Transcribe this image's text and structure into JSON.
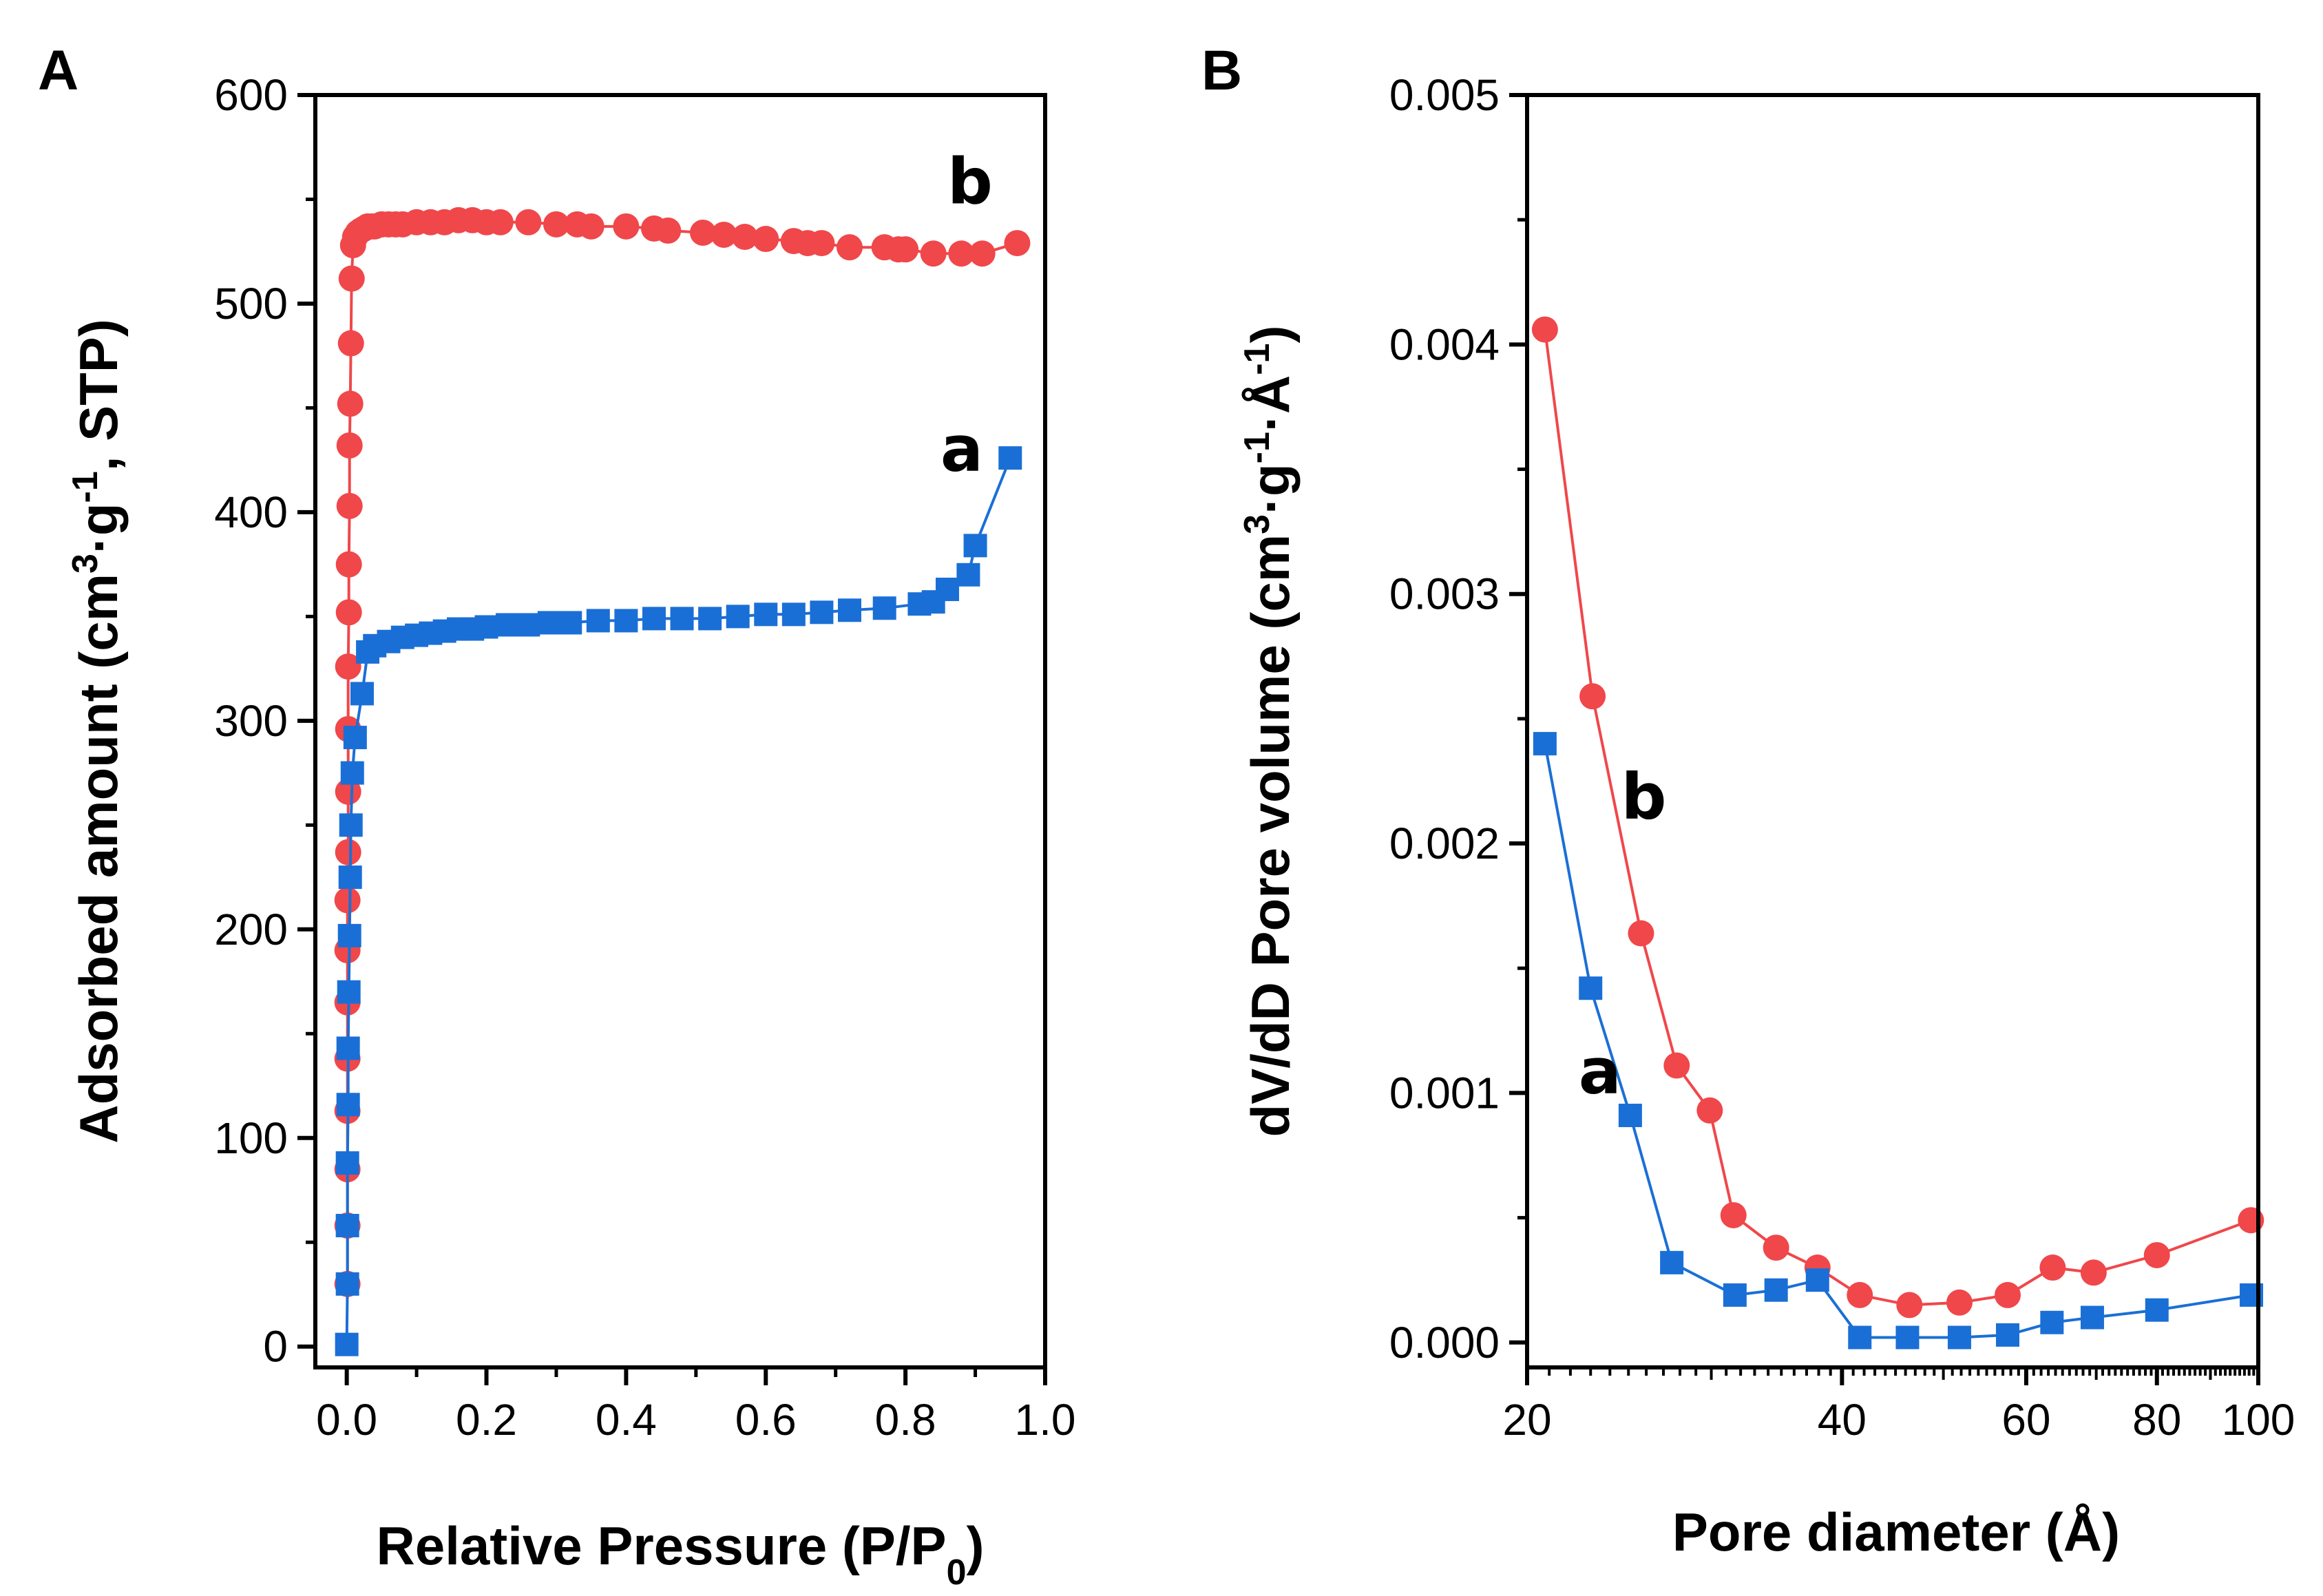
{
  "chart_data": [
    {
      "panel": "A",
      "type": "scatter",
      "xlabel": "Relative Pressure (P/P0)",
      "xlabel_parts": {
        "main": "Relative Pressure (P/P",
        "sub": "0",
        "end": ")"
      },
      "ylabel": "Adsorbed amount (cm3·g-1, STP)",
      "ylabel_parts": {
        "a": "Adsorbed amount (cm",
        "sup1": "3",
        "b": "·g",
        "sup2": "-1",
        "c": ", STP)"
      },
      "xlim": [
        -0.045,
        1.0
      ],
      "ylim": [
        -10,
        600
      ],
      "x_ticks": [
        0.0,
        0.2,
        0.4,
        0.6,
        0.8,
        1.0
      ],
      "x_tick_labels": [
        "0.0",
        "0.2",
        "0.4",
        "0.6",
        "0.8",
        "1.0"
      ],
      "y_ticks": [
        0,
        100,
        200,
        300,
        400,
        500,
        600
      ],
      "y_tick_labels": [
        "0",
        "100",
        "200",
        "300",
        "400",
        "500",
        "600"
      ],
      "grid": false,
      "series": [
        {
          "name": "a",
          "label": "a",
          "color": "#1a6fd6",
          "marker": "square",
          "label_pos": [
            0.85,
            420
          ],
          "x": [
            0.0,
            0.001,
            0.001,
            0.001,
            0.002,
            0.002,
            0.003,
            0.004,
            0.005,
            0.006,
            0.008,
            0.012,
            0.022,
            0.03,
            0.04,
            0.06,
            0.08,
            0.1,
            0.12,
            0.14,
            0.16,
            0.18,
            0.2,
            0.23,
            0.26,
            0.29,
            0.32,
            0.36,
            0.4,
            0.44,
            0.48,
            0.52,
            0.56,
            0.6,
            0.64,
            0.68,
            0.72,
            0.77,
            0.82,
            0.84,
            0.86,
            0.89,
            0.9,
            0.95
          ],
          "y": [
            1,
            30,
            58,
            88,
            116,
            143,
            170,
            197,
            225,
            250,
            275,
            292,
            313,
            333,
            336,
            338,
            340,
            341,
            342,
            343,
            344,
            344,
            345,
            346,
            346,
            347,
            347,
            348,
            348,
            349,
            349,
            349,
            350,
            351,
            351,
            352,
            353,
            354,
            356,
            357,
            363,
            370,
            384,
            426
          ]
        },
        {
          "name": "b",
          "label": "b",
          "color": "#f0474a",
          "marker": "circle",
          "label_pos": [
            0.86,
            548
          ],
          "x": [
            0.001,
            0.001,
            0.001,
            0.001,
            0.001,
            0.001,
            0.001,
            0.001,
            0.002,
            0.002,
            0.002,
            0.002,
            0.003,
            0.003,
            0.004,
            0.004,
            0.005,
            0.006,
            0.007,
            0.009,
            0.012,
            0.016,
            0.02,
            0.025,
            0.03,
            0.035,
            0.04,
            0.05,
            0.06,
            0.07,
            0.08,
            0.1,
            0.12,
            0.14,
            0.16,
            0.18,
            0.2,
            0.22,
            0.26,
            0.3,
            0.33,
            0.35,
            0.4,
            0.44,
            0.46,
            0.51,
            0.54,
            0.57,
            0.6,
            0.64,
            0.66,
            0.68,
            0.72,
            0.77,
            0.79,
            0.8,
            0.84,
            0.88,
            0.91,
            0.96
          ],
          "y": [
            30,
            58,
            85,
            113,
            138,
            165,
            190,
            214,
            237,
            266,
            296,
            326,
            352,
            375,
            403,
            432,
            452,
            481,
            512,
            528,
            532,
            534,
            535,
            536,
            537,
            537,
            537,
            538,
            538,
            538,
            538,
            539,
            539,
            539,
            540,
            540,
            539,
            539,
            539,
            538,
            538,
            537,
            537,
            536,
            535,
            534,
            533,
            532,
            531,
            530,
            529,
            529,
            527,
            527,
            526,
            526,
            524,
            524,
            524,
            529
          ]
        }
      ]
    },
    {
      "panel": "B",
      "type": "line",
      "xlabel": "Pore diameter (Å)",
      "ylabel": "dV/dD Pore volume (cm3·g-1·Å-1)",
      "ylabel_parts": {
        "a": "dV/dD Pore volume (cm",
        "sup1": "3",
        "b": "·g",
        "sup2": "-1",
        "c": "·Å",
        "sup3": "-1",
        "d": ")"
      },
      "x_scale": "log",
      "xlim": [
        20,
        100
      ],
      "ylim": [
        -0.0001,
        0.005
      ],
      "x_ticks": [
        20,
        40,
        60,
        80,
        100
      ],
      "x_tick_labels": [
        "20",
        "40",
        "60",
        "80",
        "100"
      ],
      "y_ticks": [
        0.0,
        0.001,
        0.002,
        0.003,
        0.004,
        0.005
      ],
      "y_tick_labels": [
        "0.000",
        "0.001",
        "0.002",
        "0.003",
        "0.004",
        "0.005"
      ],
      "grid": false,
      "series": [
        {
          "name": "a",
          "label": "a",
          "color": "#1a6fd6",
          "marker": "square",
          "label_pos": [
            22.4,
            0.001
          ],
          "x": [
            20.8,
            23.0,
            25.1,
            27.5,
            31.6,
            34.6,
            37.9,
            41.6,
            46.2,
            51.8,
            57.6,
            63.5,
            69.4,
            80.0,
            98.5
          ],
          "y": [
            0.0024,
            0.00142,
            0.00091,
            0.00032,
            0.00019,
            0.00021,
            0.00025,
            2e-05,
            2e-05,
            2e-05,
            3e-05,
            8e-05,
            0.0001,
            0.00013,
            0.00019
          ]
        },
        {
          "name": "b",
          "label": "b",
          "color": "#f0474a",
          "marker": "circle",
          "label_pos": [
            24.6,
            0.0021
          ],
          "x": [
            20.8,
            23.1,
            25.7,
            27.8,
            29.9,
            31.5,
            34.6,
            37.9,
            41.6,
            46.4,
            51.8,
            57.6,
            63.6,
            69.6,
            80.0,
            98.4
          ],
          "y": [
            0.00406,
            0.00259,
            0.00164,
            0.00111,
            0.00093,
            0.00051,
            0.00038,
            0.0003,
            0.00019,
            0.00015,
            0.00016,
            0.00019,
            0.0003,
            0.00028,
            0.00035,
            0.00049
          ]
        }
      ]
    }
  ]
}
